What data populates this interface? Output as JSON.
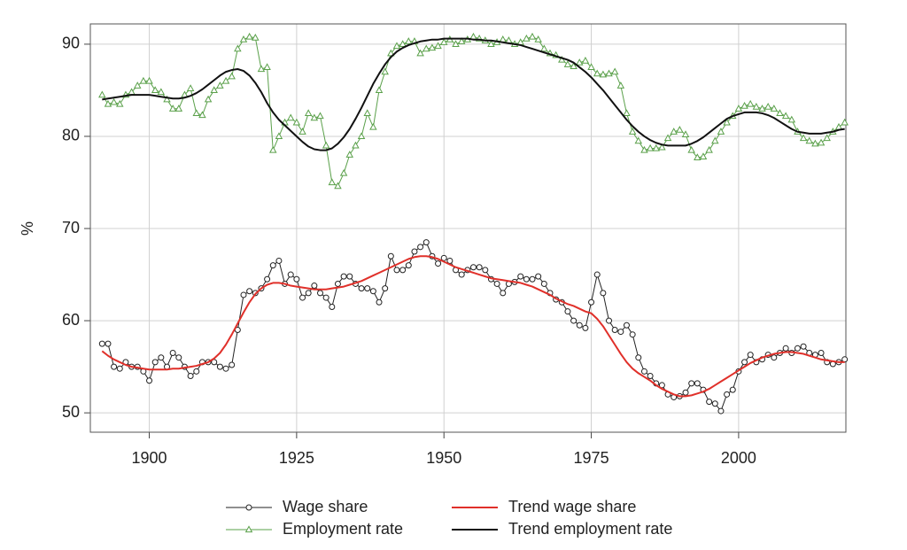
{
  "chart_data": {
    "type": "line",
    "ylabel": "%",
    "xlim": [
      1890,
      2018.2
    ],
    "ylim": [
      47.9,
      92.2
    ],
    "xticks": [
      1900,
      1925,
      1950,
      1975,
      2000
    ],
    "yticks": [
      50,
      60,
      70,
      80,
      90
    ],
    "grid": true,
    "x": [
      1892,
      1893,
      1894,
      1895,
      1896,
      1897,
      1898,
      1899,
      1900,
      1901,
      1902,
      1903,
      1904,
      1905,
      1906,
      1907,
      1908,
      1909,
      1910,
      1911,
      1912,
      1913,
      1914,
      1915,
      1916,
      1917,
      1918,
      1919,
      1920,
      1921,
      1922,
      1923,
      1924,
      1925,
      1926,
      1927,
      1928,
      1929,
      1930,
      1931,
      1932,
      1933,
      1934,
      1935,
      1936,
      1937,
      1938,
      1939,
      1940,
      1941,
      1942,
      1943,
      1944,
      1945,
      1946,
      1947,
      1948,
      1949,
      1950,
      1951,
      1952,
      1953,
      1954,
      1955,
      1956,
      1957,
      1958,
      1959,
      1960,
      1961,
      1962,
      1963,
      1964,
      1965,
      1966,
      1967,
      1968,
      1969,
      1970,
      1971,
      1972,
      1973,
      1974,
      1975,
      1976,
      1977,
      1978,
      1979,
      1980,
      1981,
      1982,
      1983,
      1984,
      1985,
      1986,
      1987,
      1988,
      1989,
      1990,
      1991,
      1992,
      1993,
      1994,
      1995,
      1996,
      1997,
      1998,
      1999,
      2000,
      2001,
      2002,
      2003,
      2004,
      2005,
      2006,
      2007,
      2008,
      2009,
      2010,
      2011,
      2012,
      2013,
      2014,
      2015,
      2016,
      2017,
      2018
    ],
    "series": [
      {
        "name": "Wage share",
        "color": "#222222",
        "marker": "circle",
        "values": [
          57.5,
          57.5,
          55,
          54.8,
          55.5,
          55,
          55,
          54.5,
          53.5,
          55.5,
          56,
          55,
          56.5,
          56,
          55,
          54,
          54.5,
          55.5,
          55.5,
          55.5,
          55,
          54.8,
          55.2,
          59,
          62.8,
          63.2,
          63,
          63.5,
          64.5,
          66,
          66.5,
          64,
          65,
          64.5,
          62.5,
          63,
          63.8,
          63,
          62.5,
          61.5,
          64,
          64.8,
          64.8,
          64,
          63.5,
          63.5,
          63.2,
          62,
          63.5,
          67,
          65.5,
          65.5,
          66,
          67.5,
          68,
          68.5,
          67,
          66.2,
          66.8,
          66.5,
          65.5,
          65,
          65.5,
          65.8,
          65.8,
          65.5,
          64.5,
          64,
          63,
          64,
          64.2,
          64.8,
          64.5,
          64.5,
          64.8,
          64,
          63,
          62.3,
          62,
          61,
          60,
          59.5,
          59.2,
          62,
          65,
          63,
          60,
          59,
          58.8,
          59.5,
          58.5,
          56,
          54.5,
          54,
          53.2,
          53,
          52,
          51.7,
          51.8,
          52.2,
          53.2,
          53.2,
          52.5,
          51.2,
          51,
          50.2,
          52,
          52.5,
          54.5,
          55.5,
          56.3,
          55.5,
          55.8,
          56.3,
          56,
          56.5,
          57,
          56.5,
          57,
          57.2,
          56.5,
          56.3,
          56.5,
          55.5,
          55.3,
          55.5,
          55.8
        ]
      },
      {
        "name": "Employment rate",
        "color": "#5aa04a",
        "marker": "triangle",
        "values": [
          84.5,
          83.5,
          83.7,
          83.5,
          84.5,
          84.8,
          85.5,
          86,
          86,
          85,
          84.8,
          84,
          83,
          83,
          84.5,
          85.2,
          82.5,
          82.3,
          84,
          85,
          85.5,
          86,
          86.5,
          89.5,
          90.5,
          90.8,
          90.7,
          87.3,
          87.5,
          78.5,
          80,
          81.5,
          82,
          81.5,
          80.5,
          82.5,
          82,
          82.2,
          79,
          75,
          74.6,
          76,
          78,
          79,
          80,
          82.5,
          81,
          85,
          87,
          89,
          89.8,
          90,
          90.3,
          90.3,
          89,
          89.5,
          89.6,
          89.8,
          90.2,
          90.5,
          90,
          90.3,
          90.5,
          90.8,
          90.6,
          90.4,
          90,
          90.2,
          90.5,
          90.4,
          90,
          90.2,
          90.6,
          90.8,
          90.5,
          89.5,
          89,
          88.8,
          88.3,
          87.8,
          87.6,
          88,
          88.2,
          87.5,
          86.8,
          86.7,
          86.8,
          87,
          85.5,
          82.5,
          80.5,
          79.5,
          78.5,
          78.7,
          78.7,
          78.8,
          79.8,
          80.5,
          80.7,
          80.2,
          78.5,
          77.7,
          77.8,
          78.5,
          79.5,
          80.5,
          81.5,
          82.2,
          83,
          83.3,
          83.5,
          83.2,
          83,
          83.2,
          83,
          82.5,
          82.2,
          81.8,
          80.5,
          79.8,
          79.5,
          79.2,
          79.3,
          79.8,
          80.5,
          81,
          81.5
        ]
      },
      {
        "name": "Trend wage share",
        "color": "#e0302a",
        "values": [
          56.7,
          56.2,
          55.8,
          55.5,
          55.2,
          55.0,
          54.9,
          54.8,
          54.7,
          54.7,
          54.7,
          54.7,
          54.8,
          54.8,
          54.9,
          55.0,
          55.1,
          55.3,
          55.5,
          55.9,
          56.5,
          57.4,
          58.5,
          59.7,
          60.9,
          62.0,
          62.9,
          63.5,
          63.9,
          64.1,
          64.1,
          64.0,
          63.8,
          63.7,
          63.6,
          63.5,
          63.4,
          63.4,
          63.4,
          63.5,
          63.6,
          63.7,
          63.9,
          64.1,
          64.3,
          64.6,
          64.9,
          65.2,
          65.5,
          65.8,
          66.1,
          66.4,
          66.7,
          66.9,
          67.0,
          67.0,
          66.9,
          66.7,
          66.4,
          66.1,
          65.8,
          65.6,
          65.4,
          65.2,
          65.0,
          64.8,
          64.6,
          64.5,
          64.4,
          64.3,
          64.2,
          64.1,
          63.9,
          63.7,
          63.4,
          63.1,
          62.8,
          62.4,
          62.1,
          61.8,
          61.6,
          61.3,
          61.0,
          60.8,
          60.2,
          59.4,
          58.4,
          57.4,
          56.4,
          55.5,
          54.8,
          54.3,
          53.9,
          53.5,
          53.0,
          52.6,
          52.3,
          52.0,
          51.8,
          51.8,
          51.9,
          52.1,
          52.3,
          52.6,
          53.0,
          53.4,
          53.8,
          54.2,
          54.6,
          55.0,
          55.4,
          55.7,
          56.0,
          56.2,
          56.4,
          56.5,
          56.6,
          56.6,
          56.5,
          56.4,
          56.2,
          56.0,
          55.8,
          55.7,
          55.6,
          55.5,
          55.5
        ]
      },
      {
        "name": "Trend employment rate",
        "color": "#111111",
        "values": [
          84.0,
          84.1,
          84.2,
          84.3,
          84.4,
          84.5,
          84.5,
          84.5,
          84.5,
          84.4,
          84.3,
          84.2,
          84.1,
          84.1,
          84.2,
          84.4,
          84.7,
          85.1,
          85.6,
          86.1,
          86.6,
          87.0,
          87.2,
          87.3,
          87.1,
          86.6,
          85.8,
          84.8,
          83.6,
          82.6,
          81.8,
          81.2,
          80.6,
          80.0,
          79.4,
          78.9,
          78.6,
          78.5,
          78.5,
          78.7,
          79.2,
          79.9,
          80.8,
          81.9,
          83.1,
          84.4,
          85.7,
          86.8,
          87.8,
          88.6,
          89.2,
          89.6,
          89.9,
          90.1,
          90.3,
          90.4,
          90.5,
          90.5,
          90.6,
          90.6,
          90.6,
          90.6,
          90.6,
          90.5,
          90.5,
          90.4,
          90.4,
          90.3,
          90.2,
          90.1,
          90.0,
          89.9,
          89.7,
          89.5,
          89.3,
          89.1,
          88.9,
          88.7,
          88.5,
          88.3,
          88.0,
          87.5,
          87.0,
          86.4,
          85.7,
          85.0,
          84.2,
          83.4,
          82.6,
          81.8,
          81.1,
          80.5,
          80.0,
          79.6,
          79.3,
          79.1,
          79.0,
          79.0,
          79.0,
          79.0,
          79.2,
          79.5,
          79.9,
          80.4,
          80.9,
          81.4,
          81.9,
          82.2,
          82.4,
          82.6,
          82.6,
          82.6,
          82.5,
          82.3,
          82.0,
          81.6,
          81.2,
          80.8,
          80.5,
          80.4,
          80.3,
          80.3,
          80.3,
          80.4,
          80.5,
          80.7,
          80.8
        ]
      }
    ]
  }
}
